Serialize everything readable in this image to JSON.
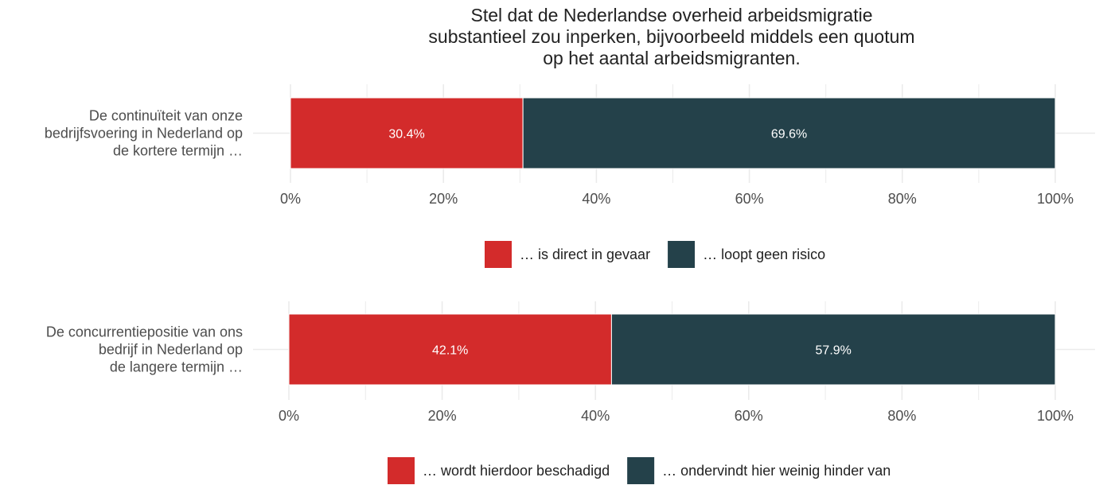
{
  "chart_data": {
    "type": "bar",
    "orientation": "horizontal",
    "stacked": true,
    "title_lines": [
      "Stel dat de Nederlandse overheid arbeidsmigratie",
      "substantieel zou inperken, bijvoorbeeld middels een quotum",
      "op het aantal arbeidsmigranten."
    ],
    "colors": {
      "red": "#d32b2b",
      "dark": "#24414a",
      "grid": "#ebebeb"
    },
    "xlim": [
      0,
      100
    ],
    "ticks": [
      0,
      20,
      40,
      60,
      80,
      100
    ],
    "tick_labels": [
      "0%",
      "20%",
      "40%",
      "60%",
      "80%",
      "100%"
    ],
    "panels": [
      {
        "category_lines": [
          "De continuïteit van onze",
          "bedrijfsvoering in Nederland op",
          "de kortere termijn …"
        ],
        "series": [
          {
            "name": "… is direct in gevaar",
            "value": 30.4,
            "label": "30.4%",
            "color": "#d32b2b"
          },
          {
            "name": "… loopt geen risico",
            "value": 69.6,
            "label": "69.6%",
            "color": "#24414a"
          }
        ]
      },
      {
        "category_lines": [
          "De concurrentiepositie van ons",
          "bedrijf in Nederland op",
          "de langere termijn …"
        ],
        "series": [
          {
            "name": "… wordt hierdoor beschadigd",
            "value": 42.1,
            "label": "42.1%",
            "color": "#d32b2b"
          },
          {
            "name": "… ondervindt hier weinig hinder van",
            "value": 57.9,
            "label": "57.9%",
            "color": "#24414a"
          }
        ]
      }
    ]
  }
}
